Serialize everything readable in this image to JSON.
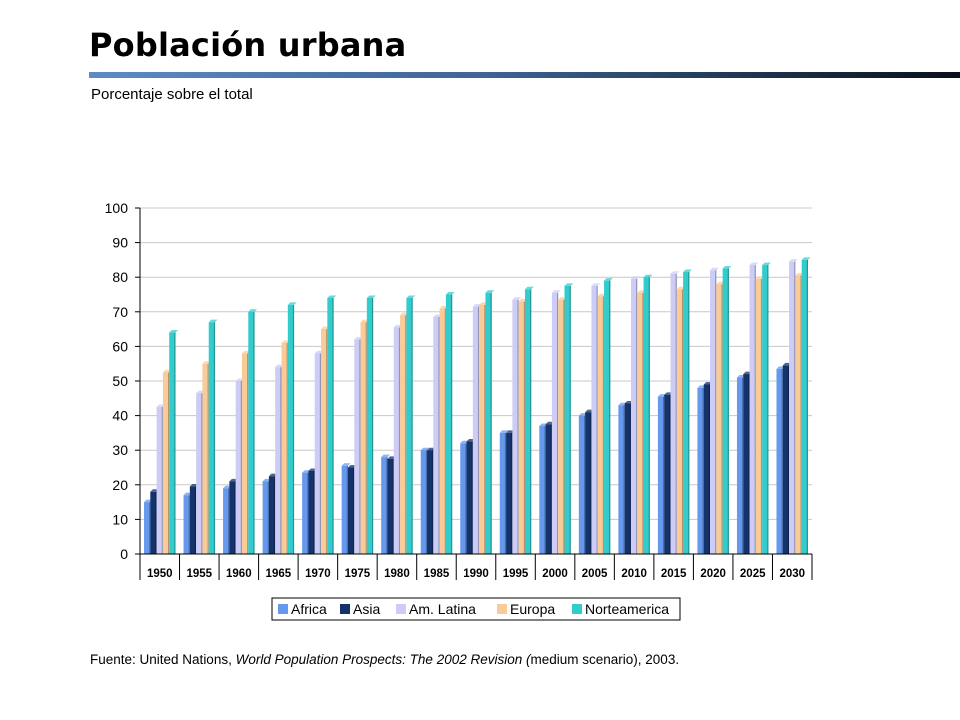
{
  "header": {
    "title": "Población urbana",
    "subtitle": "Porcentaje sobre el total"
  },
  "footer": {
    "source_prefix": "Fuente: United Nations, ",
    "source_italic": "World Population Prospects: The 2002 Revision (",
    "source_suffix": "medium scenario), 2003."
  },
  "chart_data": {
    "type": "bar",
    "ylim": [
      0,
      100
    ],
    "yticks": [
      0,
      10,
      20,
      30,
      40,
      50,
      60,
      70,
      80,
      90,
      100
    ],
    "grid": true,
    "legend_position": "bottom",
    "categories": [
      "1950",
      "1955",
      "1960",
      "1965",
      "1970",
      "1975",
      "1980",
      "1985",
      "1990",
      "1995",
      "2000",
      "2005",
      "2010",
      "2015",
      "2020",
      "2025",
      "2030"
    ],
    "series": [
      {
        "name": "Africa",
        "color": "#6699ee",
        "values": [
          15,
          17,
          19,
          21,
          23.5,
          25.5,
          28,
          30,
          32,
          35,
          37,
          40,
          43,
          45.5,
          48,
          51,
          53.5
        ]
      },
      {
        "name": "Asia",
        "color": "#14336b",
        "values": [
          18,
          19.5,
          21,
          22.5,
          24,
          25,
          27.5,
          30,
          32.5,
          35,
          37.5,
          41,
          43.5,
          46,
          49,
          52,
          54.5
        ]
      },
      {
        "name": "Am. Latina",
        "color": "#ccccf7",
        "values": [
          42.5,
          46.5,
          50,
          54,
          58,
          62,
          65.5,
          68.5,
          71.5,
          73.5,
          75.5,
          77.5,
          79.5,
          81,
          82,
          83.5,
          84.5
        ]
      },
      {
        "name": "Europa",
        "color": "#f8cb98",
        "values": [
          52.5,
          55,
          58,
          61,
          65,
          67,
          69,
          71,
          72,
          73,
          73.5,
          74.5,
          75.5,
          76.5,
          78,
          79.5,
          80.5
        ]
      },
      {
        "name": "Norteamerica",
        "color": "#33cccc",
        "values": [
          64,
          67,
          70,
          72,
          74,
          74,
          74,
          75,
          75.5,
          76.5,
          77.5,
          79,
          80,
          81.5,
          82.5,
          83.5,
          85
        ]
      }
    ]
  }
}
